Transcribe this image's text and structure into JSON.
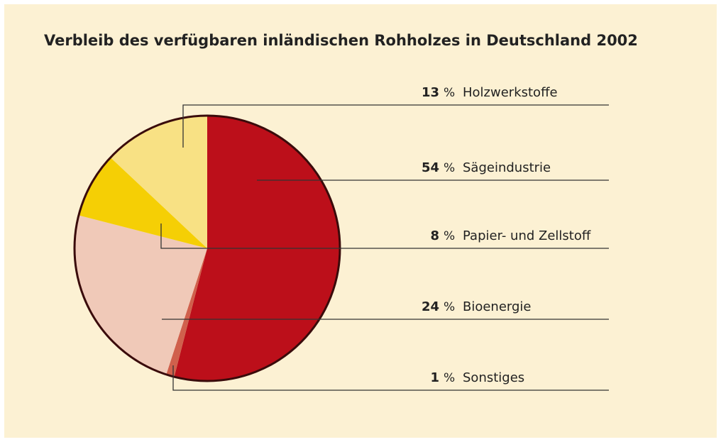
{
  "chart_data": {
    "type": "pie",
    "title": "Verbleib des verfügbaren inländischen Rohholzes in Deutschland 2002",
    "categories": [
      "Sägeindustrie",
      "Sonstiges",
      "Bioenergie",
      "Papier- und Zellstoff",
      "Holzwerkstoffe"
    ],
    "values": [
      54,
      1,
      24,
      8,
      13
    ],
    "colors": [
      "#bc0f1a",
      "#d0604c",
      "#f0c9b8",
      "#f5cf05",
      "#f8e184"
    ],
    "unit": "%"
  }
}
